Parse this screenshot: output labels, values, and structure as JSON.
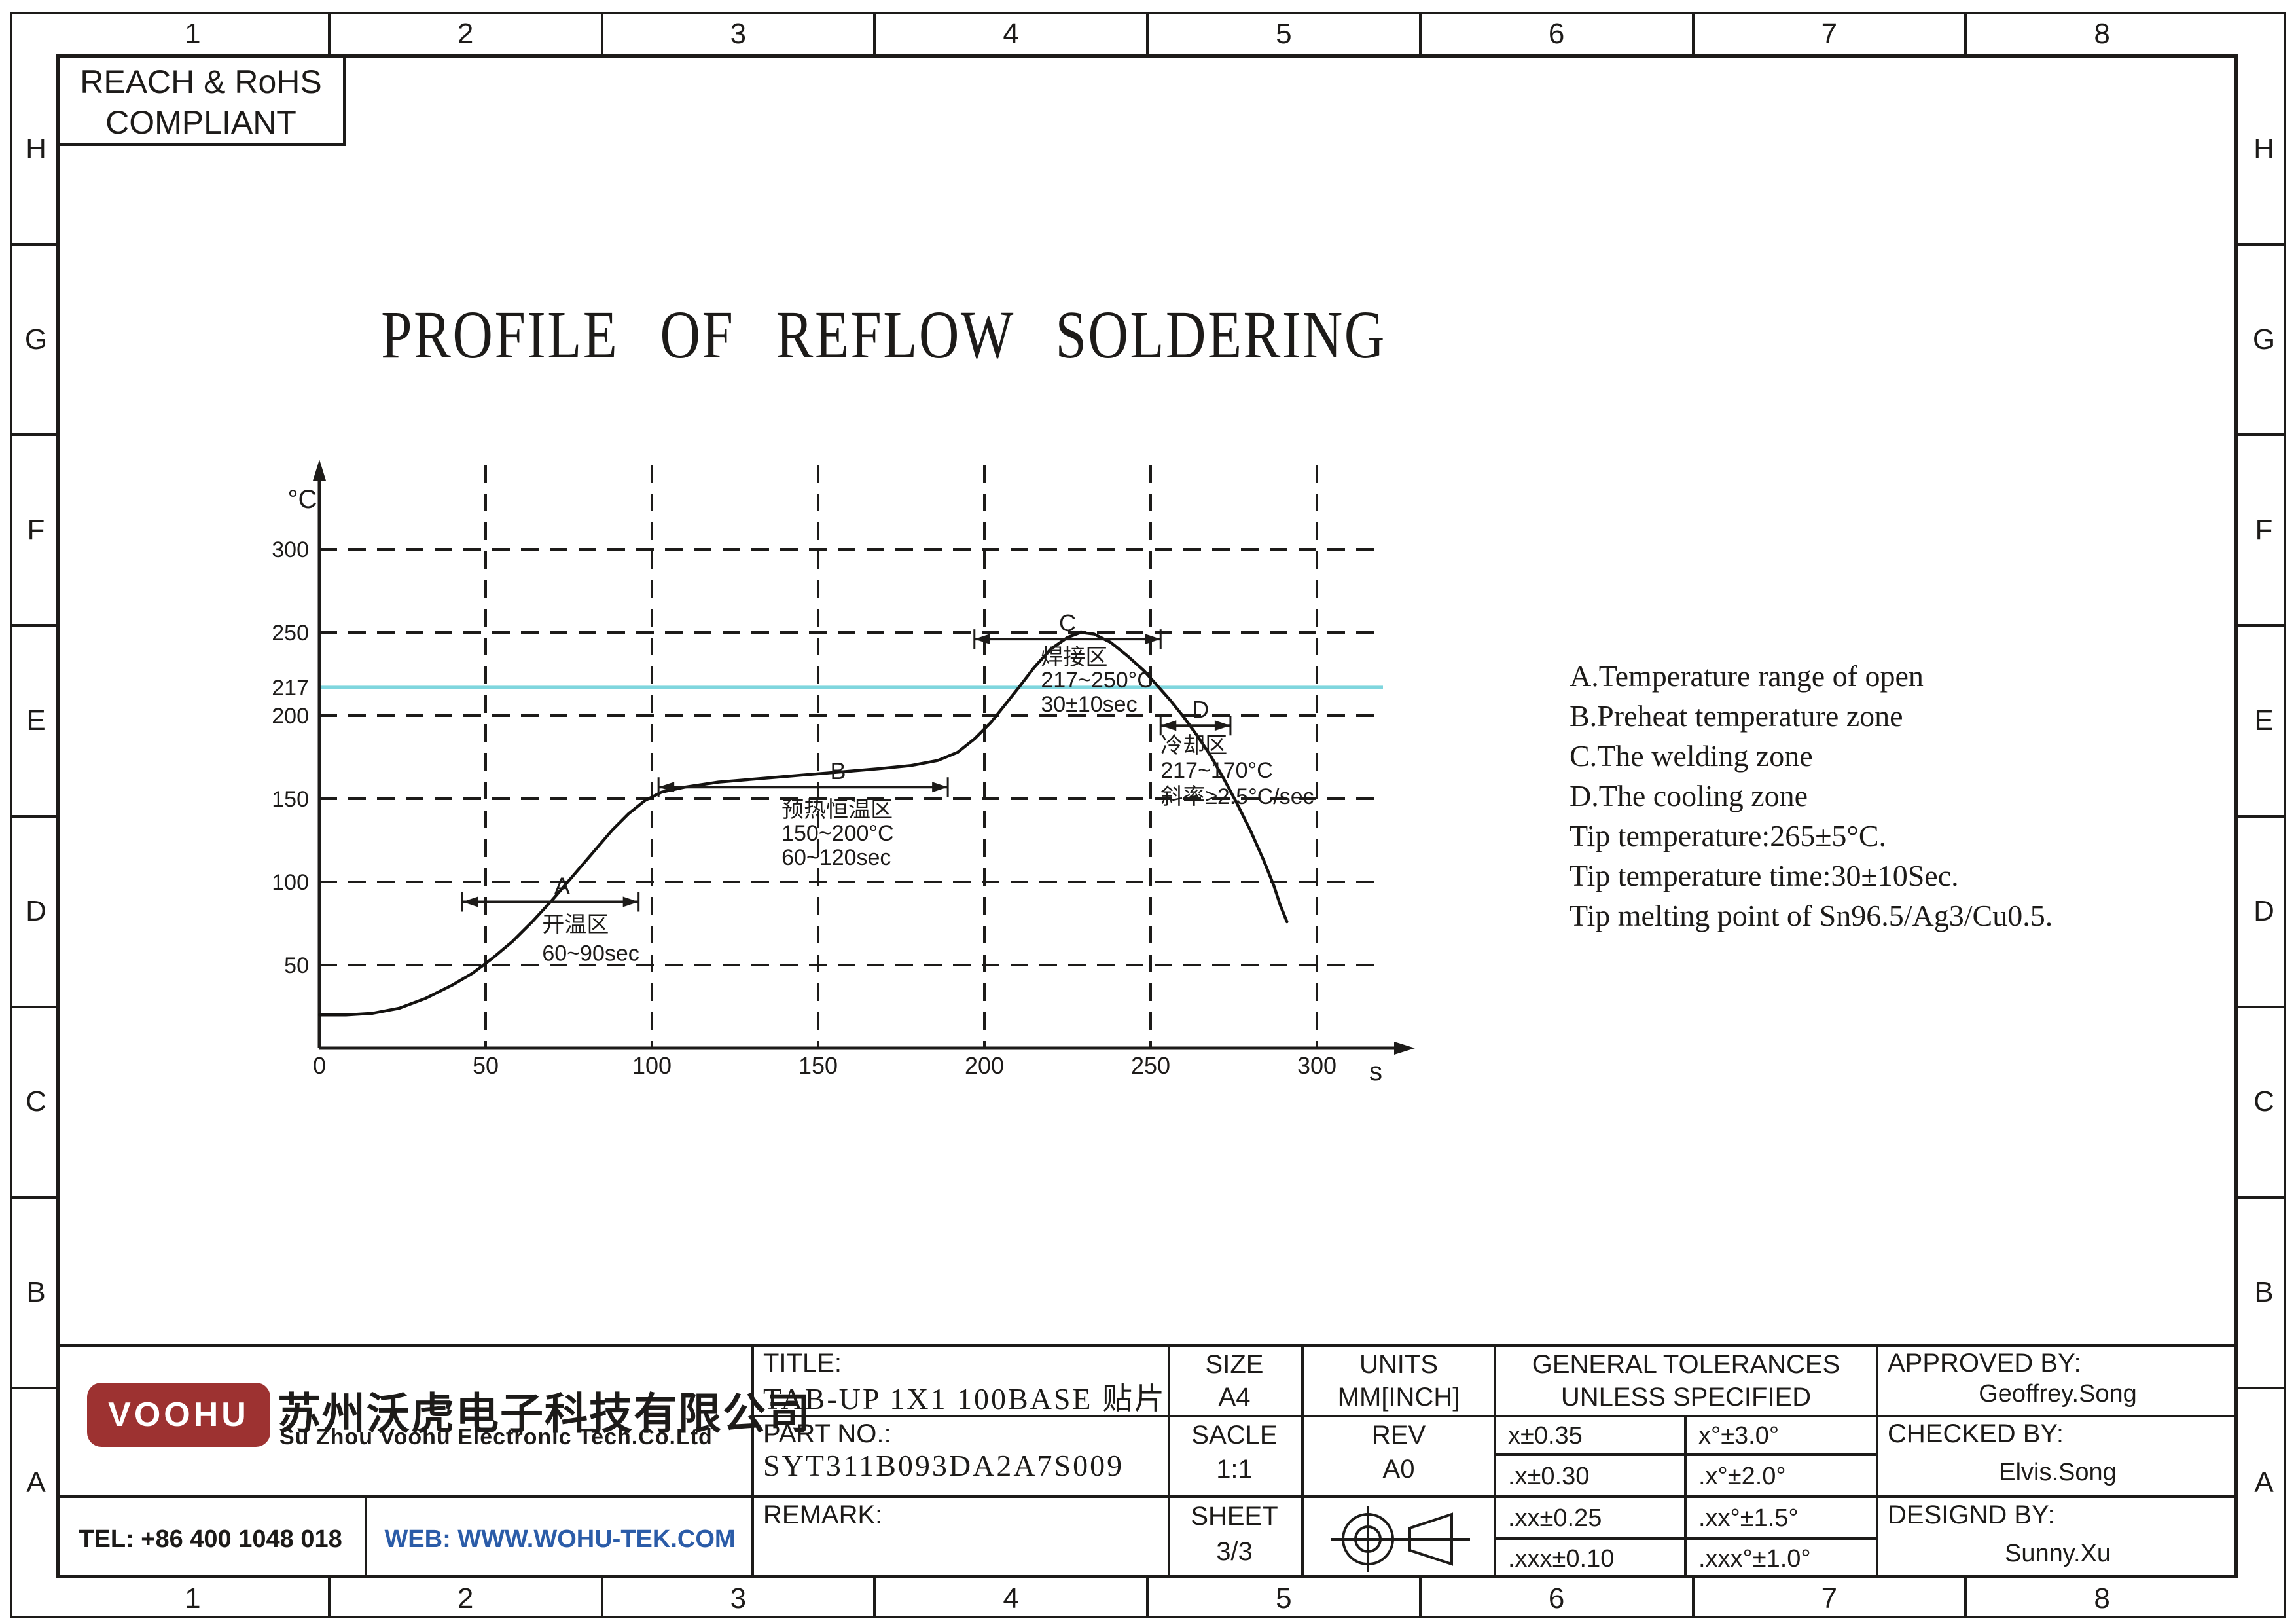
{
  "compliance_badge": {
    "line1": "REACH & RoHS",
    "line2": "COMPLIANT"
  },
  "drawing_title": "PROFILE OF REFLOW SOLDERING",
  "grid_refs": {
    "columns": [
      "1",
      "2",
      "3",
      "4",
      "5",
      "6",
      "7",
      "8"
    ],
    "rows": [
      "H",
      "G",
      "F",
      "E",
      "D",
      "C",
      "B",
      "A"
    ]
  },
  "notes": {
    "lines": [
      "A.Temperature range of open",
      "B.Preheat temperature zone",
      "C.The welding zone",
      "D.The cooling zone",
      "Tip temperature:265±5°C.",
      "Tip temperature time:30±10Sec.",
      "Tip melting point of Sn96.5/Ag3/Cu0.5."
    ]
  },
  "chart_data": {
    "type": "line",
    "title": "PROFILE OF REFLOW SOLDERING",
    "xlabel": "s",
    "ylabel": "°C",
    "xlim": [
      0,
      330
    ],
    "ylim": [
      0,
      350
    ],
    "grid": true,
    "x_ticks": [
      0,
      50,
      100,
      150,
      200,
      250,
      300
    ],
    "y_tick_labels": [
      50,
      100,
      150,
      200,
      217,
      250,
      300
    ],
    "y_gridlines": [
      50,
      100,
      150,
      200,
      250,
      300
    ],
    "reference_line": {
      "y": 217,
      "color": "#7fd6de"
    },
    "series": [
      {
        "name": "reflow-temperature-profile",
        "points": [
          [
            0,
            20
          ],
          [
            8,
            20
          ],
          [
            16,
            21
          ],
          [
            24,
            24
          ],
          [
            32,
            30
          ],
          [
            40,
            38
          ],
          [
            46,
            45
          ],
          [
            52,
            54
          ],
          [
            58,
            64
          ],
          [
            64,
            76
          ],
          [
            70,
            89
          ],
          [
            76,
            103
          ],
          [
            82,
            117
          ],
          [
            88,
            131
          ],
          [
            93,
            141
          ],
          [
            98,
            149
          ],
          [
            103,
            154
          ],
          [
            110,
            157
          ],
          [
            120,
            160
          ],
          [
            132,
            162
          ],
          [
            144,
            164
          ],
          [
            156,
            166
          ],
          [
            168,
            168
          ],
          [
            178,
            170
          ],
          [
            186,
            173
          ],
          [
            192,
            178
          ],
          [
            197,
            186
          ],
          [
            202,
            196
          ],
          [
            206,
            206
          ],
          [
            210,
            216
          ],
          [
            215,
            229
          ],
          [
            220,
            240
          ],
          [
            225,
            247
          ],
          [
            229,
            250
          ],
          [
            233,
            249
          ],
          [
            238,
            244
          ],
          [
            243,
            236
          ],
          [
            248,
            227
          ],
          [
            252,
            218
          ],
          [
            256,
            209
          ],
          [
            260,
            199
          ],
          [
            264,
            188
          ],
          [
            268,
            176
          ],
          [
            272,
            162
          ],
          [
            276,
            147
          ],
          [
            280,
            131
          ],
          [
            284,
            113
          ],
          [
            287,
            98
          ],
          [
            289,
            86
          ],
          [
            291,
            76
          ]
        ]
      }
    ],
    "zones": [
      {
        "label": "A",
        "x1": 43,
        "x2": 96,
        "y": 88,
        "label_x": 73,
        "text_x": 67,
        "lines": [
          "开温区",
          "60~90sec"
        ],
        "line_offsets": [
          34,
          78
        ]
      },
      {
        "label": "B",
        "x1": 102,
        "x2": 189,
        "y": 157,
        "label_x": 156,
        "text_x": 139,
        "lines": [
          "预热恒温区",
          "150~200°C",
          "60~120sec"
        ],
        "line_offsets": [
          34,
          70,
          107
        ]
      },
      {
        "label": "C",
        "x1": 197,
        "x2": 253,
        "y": 246,
        "label_x": 225,
        "text_x": 217,
        "lines": [
          "焊接区",
          "217~250°C",
          "30±10sec"
        ],
        "line_offsets": [
          27,
          62,
          99
        ]
      },
      {
        "label": "D",
        "x1": 253,
        "x2": 274,
        "y": 194,
        "label_x": 265,
        "text_x": 253,
        "lines": [
          "冷却区",
          "217~170°C",
          "斜率≥2.5°C/sec"
        ],
        "line_offsets": [
          30,
          68,
          108
        ]
      }
    ]
  },
  "title_block": {
    "title_label": "TITLE:",
    "title_value": "TAB-UP 1X1 100BASE 贴片",
    "part_label": "PART NO.:",
    "part_value": "SYT311B093DA2A7S009",
    "remark_label": "REMARK:",
    "size_label": "SIZE",
    "size_value": "A4",
    "scale_label": "SACLE",
    "scale_value": "1:1",
    "sheet_label": "SHEET",
    "sheet_value": "3/3",
    "units_label": "UNITS",
    "units_value": "MM[INCH]",
    "rev_label": "REV",
    "rev_value": "A0",
    "tol_header_line1": "GENERAL TOLERANCES",
    "tol_header_line2": "UNLESS SPECIFIED",
    "tolerances": [
      {
        "linear": "x±0.35",
        "angular": "x°±3.0°"
      },
      {
        "linear": ".x±0.30",
        "angular": ".x°±2.0°"
      },
      {
        "linear": ".xx±0.25",
        "angular": ".xx°±1.5°"
      },
      {
        "linear": ".xxx±0.10",
        "angular": ".xxx°±1.0°"
      }
    ],
    "approved_label": "APPROVED BY:",
    "approved_value": "Geoffrey.Song",
    "checked_label": "CHECKED BY:",
    "checked_value": "Elvis.Song",
    "designed_label": "DESIGND BY:",
    "designed_value": "Sunny.Xu",
    "projection_icon": "third-angle-projection-symbol"
  },
  "company": {
    "logo_text": "VOOHU",
    "logo_color": "#9d3231",
    "name_cn": "苏州沃虎电子科技有限公司",
    "name_en": "Su Zhou Voohu Electronic Tech.Co.Ltd"
  },
  "footer": {
    "tel": "TEL: +86 400 1048 018",
    "web": "WEB: WWW.WOHU-TEK.COM",
    "web_color": "#2b5ca8"
  }
}
